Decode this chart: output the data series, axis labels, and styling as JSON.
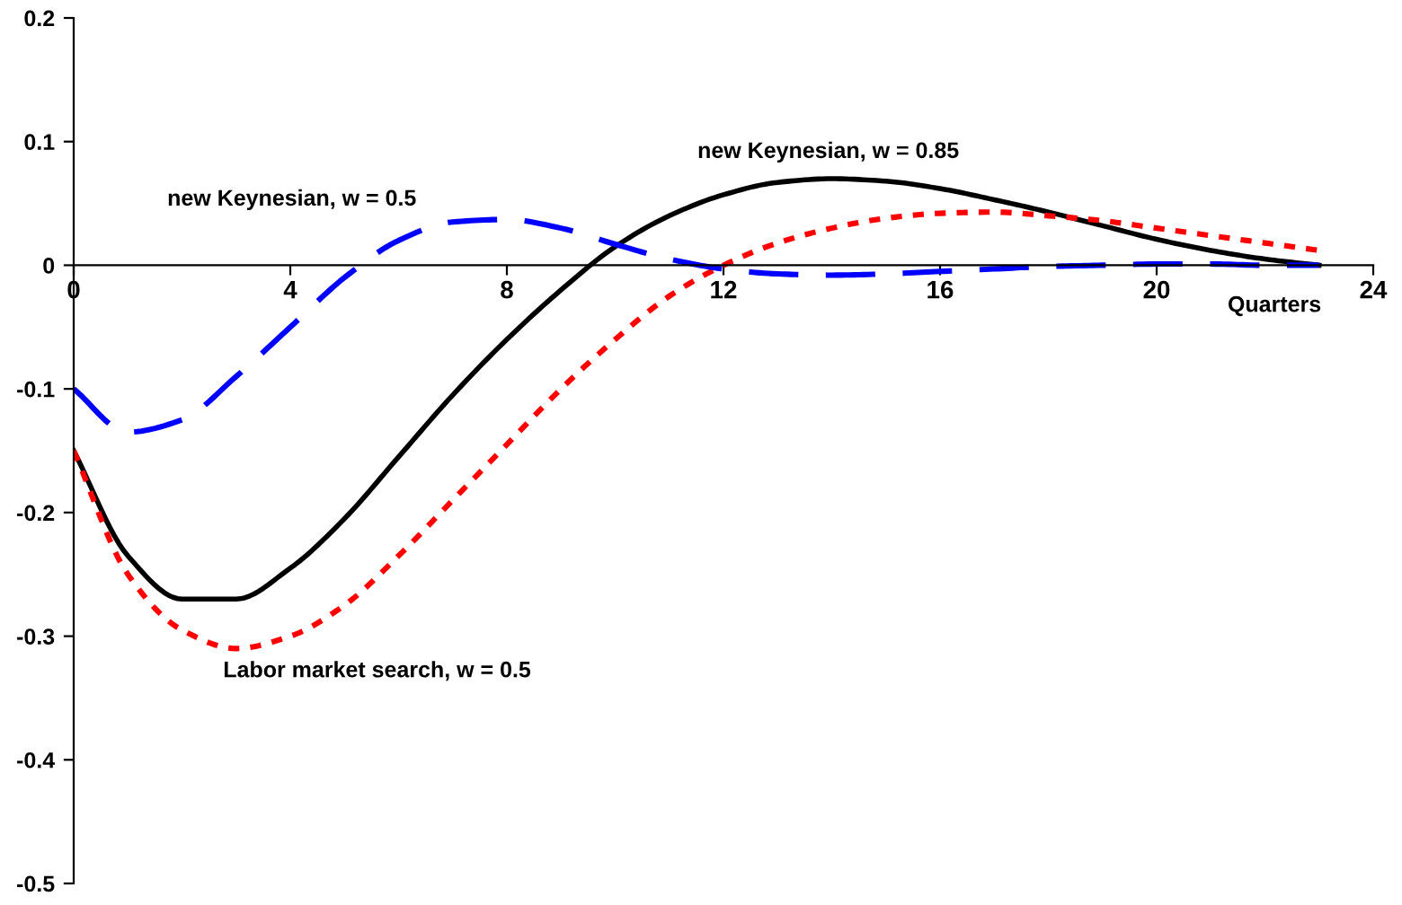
{
  "chart_data": {
    "type": "line",
    "xlabel": "Quarters",
    "x": [
      0,
      1,
      2,
      3,
      4,
      5,
      6,
      7,
      8,
      9,
      10,
      11,
      12,
      13,
      14,
      15,
      16,
      17,
      18,
      19,
      20,
      21,
      22,
      23
    ],
    "series": [
      {
        "name": "new Keynesian, w = 0.85",
        "color": "#000000",
        "line_style": "solid",
        "values": [
          -0.15,
          -0.235,
          -0.27,
          -0.27,
          -0.245,
          -0.205,
          -0.155,
          -0.105,
          -0.06,
          -0.02,
          0.015,
          0.04,
          0.057,
          0.067,
          0.07,
          0.068,
          0.062,
          0.053,
          0.043,
          0.032,
          0.021,
          0.012,
          0.005,
          0.0
        ]
      },
      {
        "name": "Labor market search, w = 0.5",
        "color": "#ff0000",
        "line_style": "dotted",
        "values": [
          -0.15,
          -0.25,
          -0.295,
          -0.31,
          -0.3,
          -0.275,
          -0.235,
          -0.19,
          -0.145,
          -0.1,
          -0.06,
          -0.025,
          0.0,
          0.018,
          0.03,
          0.038,
          0.042,
          0.043,
          0.04,
          0.036,
          0.03,
          0.024,
          0.018,
          0.012
        ]
      },
      {
        "name": "new Keynesian, w = 0.5",
        "color": "#0000ff",
        "line_style": "dashed",
        "values": [
          -0.1,
          -0.135,
          -0.125,
          -0.09,
          -0.05,
          -0.01,
          0.02,
          0.035,
          0.037,
          0.03,
          0.017,
          0.005,
          -0.003,
          -0.007,
          -0.008,
          -0.007,
          -0.005,
          -0.003,
          -0.001,
          0.0,
          0.001,
          0.001,
          0.0,
          0.0
        ]
      }
    ],
    "xlim": [
      0,
      24
    ],
    "xticks": [
      0,
      4,
      8,
      12,
      16,
      20,
      24
    ],
    "ylim": [
      -0.5,
      0.2
    ],
    "yticks": [
      -0.5,
      -0.4,
      -0.3,
      -0.2,
      -0.1,
      0,
      0.1,
      0.2
    ],
    "grid": false,
    "legend": false,
    "marker": "none"
  }
}
